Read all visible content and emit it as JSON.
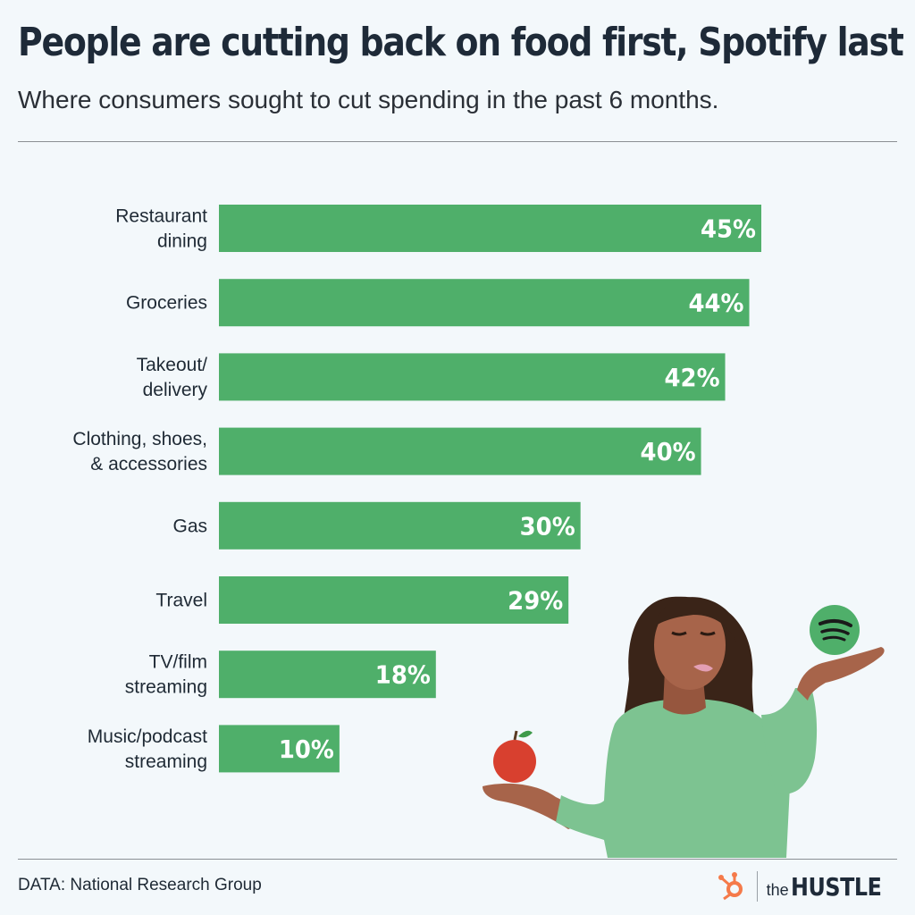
{
  "header": {
    "title": "People are cutting back on food first, Spotify last",
    "subtitle": "Where consumers sought to cut spending in the past 6 months."
  },
  "footer": {
    "source": "DATA: National Research Group",
    "brand_the": "the",
    "brand_name": "HUSTLE"
  },
  "colors": {
    "bar": "#4faf6a",
    "sweater": "#7dc391",
    "skin": "#a7644a",
    "hair": "#3a2418",
    "apple": "#d8402f",
    "hubspot": "#f57a4a"
  },
  "illustration": {
    "icons": [
      "spotify-icon",
      "apple-icon"
    ]
  },
  "chart_data": {
    "type": "bar",
    "orientation": "horizontal",
    "categories": [
      [
        "Restaurant",
        "dining"
      ],
      [
        "Groceries"
      ],
      [
        "Takeout/",
        "delivery"
      ],
      [
        "Clothing, shoes,",
        "& accessories"
      ],
      [
        "Gas"
      ],
      [
        "Travel"
      ],
      [
        "TV/film",
        "streaming"
      ],
      [
        "Music/podcast",
        "streaming"
      ]
    ],
    "values": [
      45,
      44,
      42,
      40,
      30,
      29,
      18,
      10
    ],
    "value_labels": [
      "45%",
      "44%",
      "42%",
      "40%",
      "30%",
      "29%",
      "18%",
      "10%"
    ],
    "unit": "%",
    "xlim": [
      0,
      45
    ],
    "grid": false
  }
}
